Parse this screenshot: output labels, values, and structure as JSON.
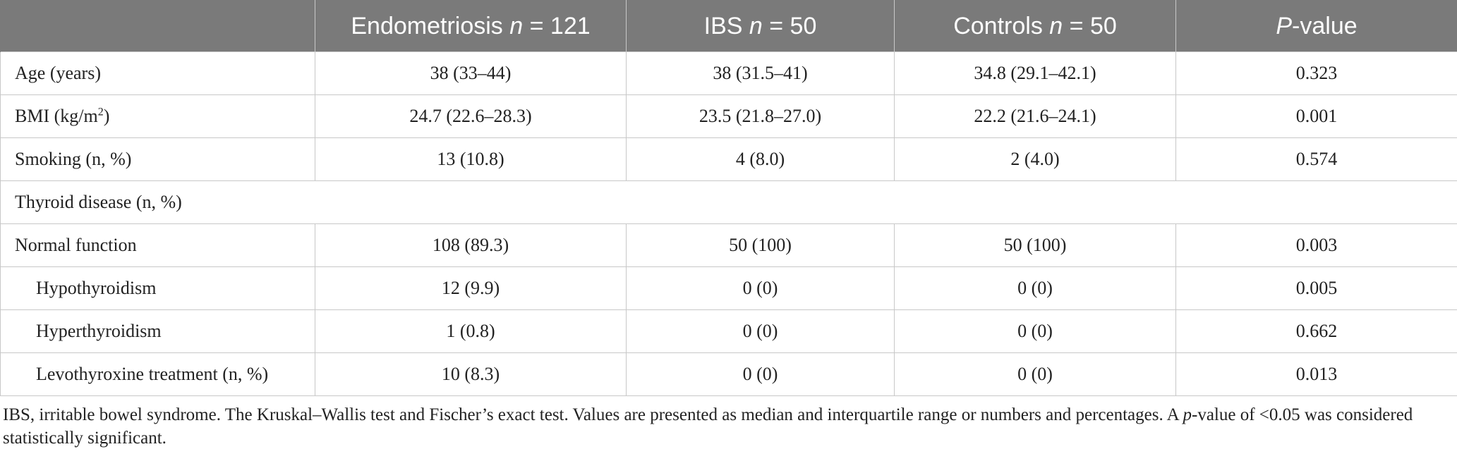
{
  "headers": {
    "endometriosis_label": "Endometriosis ",
    "endometriosis_n": "n",
    "endometriosis_count": " = 121",
    "ibs_label": "IBS ",
    "ibs_n": "n",
    "ibs_count": " = 50",
    "controls_label": "Controls ",
    "controls_n": "n",
    "controls_count": " = 50",
    "p_label": "P",
    "p_suffix": "-value"
  },
  "rows": [
    {
      "label": "Age (years)",
      "endo": "38 (33–44)",
      "ibs": "38 (31.5–41)",
      "controls": "34.8 (29.1–42.1)",
      "p": "0.323"
    },
    {
      "label_pre": "BMI (kg/m",
      "label_sup": "2",
      "label_post": ")",
      "endo": "24.7 (22.6–28.3)",
      "ibs": "23.5 (21.8–27.0)",
      "controls": "22.2 (21.6–24.1)",
      "p": "0.001"
    },
    {
      "label": "Smoking (n, %)",
      "endo": "13 (10.8)",
      "ibs": "4 (8.0)",
      "controls": "2 (4.0)",
      "p": "0.574"
    },
    {
      "label": "Thyroid disease (n, %)"
    },
    {
      "label": "Normal function",
      "endo": "108 (89.3)",
      "ibs": "50 (100)",
      "controls": "50 (100)",
      "p": "0.003"
    },
    {
      "label": "Hypothyroidism",
      "endo": "12 (9.9)",
      "ibs": "0 (0)",
      "controls": "0 (0)",
      "p": "0.005"
    },
    {
      "label": "Hyperthyroidism",
      "endo": "1 (0.8)",
      "ibs": "0 (0)",
      "controls": "0 (0)",
      "p": "0.662"
    },
    {
      "label": "Levothyroxine treatment (n, %)",
      "endo": "10 (8.3)",
      "ibs": "0 (0)",
      "controls": "0 (0)",
      "p": "0.013"
    }
  ],
  "footnote": {
    "pre": "IBS, irritable bowel syndrome. The Kruskal–Wallis test and Fischer’s exact test. Values are presented as median and interquartile range or numbers and percentages. A ",
    "p_italic": "p",
    "post": "-value of <0.05 was considered statistically significant."
  }
}
